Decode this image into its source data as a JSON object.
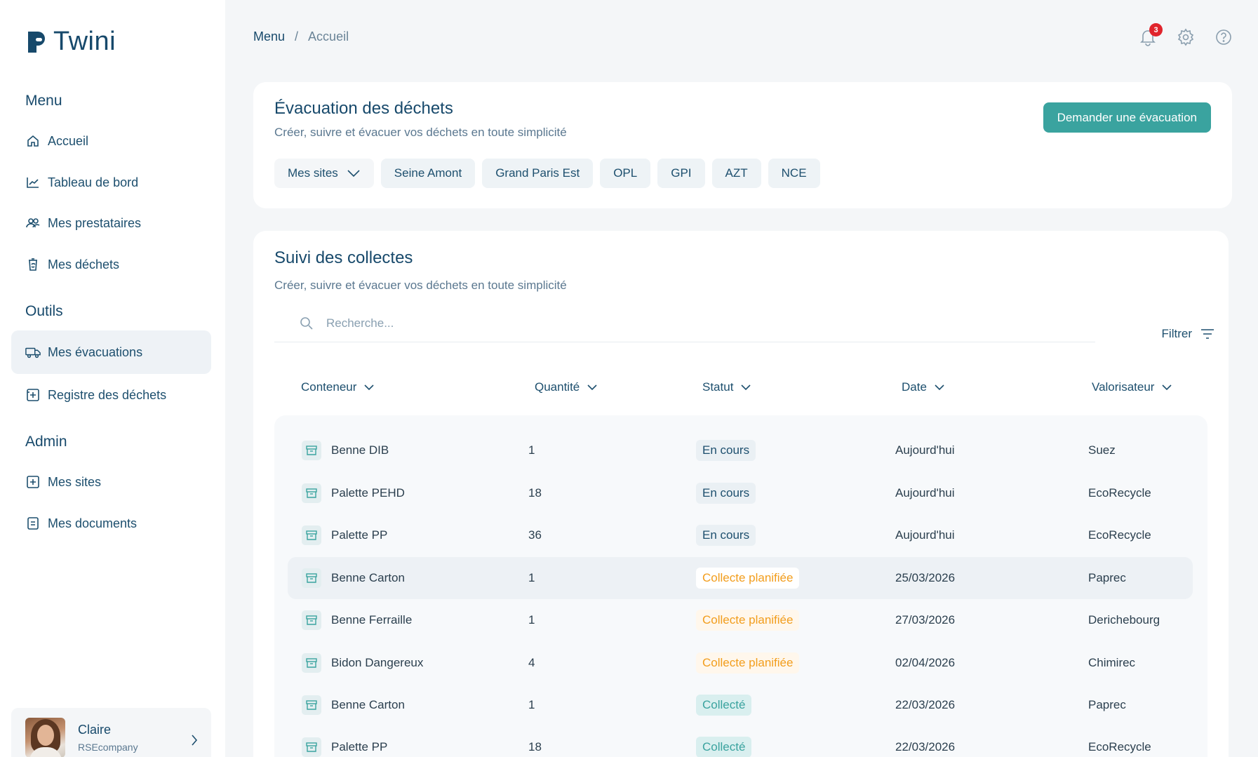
{
  "app": {
    "name": "Twini"
  },
  "sidebar": {
    "sections": {
      "menu": "Menu",
      "outils": "Outils",
      "admin": "Admin"
    },
    "items": [
      {
        "label": "Accueil",
        "icon": "home-icon"
      },
      {
        "label": "Tableau de bord",
        "icon": "chart-line-icon"
      },
      {
        "label": "Mes prestataires",
        "icon": "users-icon"
      },
      {
        "label": "Mes déchets",
        "icon": "recycle-bin-icon"
      },
      {
        "label": "Mes évacuations",
        "icon": "truck-icon",
        "active": true
      },
      {
        "label": "Registre des déchets",
        "icon": "register-icon"
      },
      {
        "label": "Mes sites",
        "icon": "site-icon"
      },
      {
        "label": "Mes documents",
        "icon": "document-icon"
      }
    ],
    "user": {
      "name": "Claire",
      "company": "RSEcompany"
    }
  },
  "breadcrumb": {
    "root": "Menu",
    "separator": "/",
    "current": "Accueil"
  },
  "header": {
    "notifications_count": "3"
  },
  "evacuation": {
    "title": "Évacuation des déchets",
    "subtitle": "Créer, suivre et évacuer vos déchets en toute simplicité",
    "button": "Demander une évacuation",
    "sites_dropdown": "Mes sites",
    "sites": [
      "Seine Amont",
      "Grand Paris Est",
      "OPL",
      "GPI",
      "AZT",
      "NCE"
    ]
  },
  "collectes": {
    "title": "Suivi des collectes",
    "subtitle": "Créer, suivre et évacuer vos déchets en toute simplicité",
    "search_placeholder": "Recherche...",
    "filter_label": "Filtrer",
    "columns": [
      "Conteneur",
      "Quantité",
      "Statut",
      "Date",
      "Valorisateur"
    ],
    "rows": [
      {
        "conteneur": "Benne DIB",
        "quantite": "1",
        "statut": "En cours",
        "status_kind": "blue",
        "date": "Aujourd'hui",
        "valorisateur": "Suez"
      },
      {
        "conteneur": "Palette PEHD",
        "quantite": "18",
        "statut": "En cours",
        "status_kind": "blue",
        "date": "Aujourd'hui",
        "valorisateur": "EcoRecycle"
      },
      {
        "conteneur": "Palette PP",
        "quantite": "36",
        "statut": "En cours",
        "status_kind": "blue",
        "date": "Aujourd'hui",
        "valorisateur": "EcoRecycle"
      },
      {
        "conteneur": "Benne Carton",
        "quantite": "1",
        "statut": "Collecte planifiée",
        "status_kind": "orange",
        "date": "25/03/2026",
        "valorisateur": "Paprec",
        "highlighted": true
      },
      {
        "conteneur": "Benne Ferraille",
        "quantite": "1",
        "statut": "Collecte planifiée",
        "status_kind": "orange",
        "date": "27/03/2026",
        "valorisateur": "Derichebourg"
      },
      {
        "conteneur": "Bidon Dangereux",
        "quantite": "4",
        "statut": "Collecte planifiée",
        "status_kind": "orange",
        "date": "02/04/2026",
        "valorisateur": "Chimirec"
      },
      {
        "conteneur": "Benne Carton",
        "quantite": "1",
        "statut": "Collecté",
        "status_kind": "green",
        "date": "22/03/2026",
        "valorisateur": "Paprec"
      },
      {
        "conteneur": "Palette PP",
        "quantite": "18",
        "statut": "Collecté",
        "status_kind": "green",
        "date": "22/03/2026",
        "valorisateur": "EcoRecycle"
      }
    ]
  },
  "colors": {
    "primary": "#3aa39f",
    "navy": "#17496b",
    "badge": "#e0242c",
    "orange": "#f29d1c"
  }
}
